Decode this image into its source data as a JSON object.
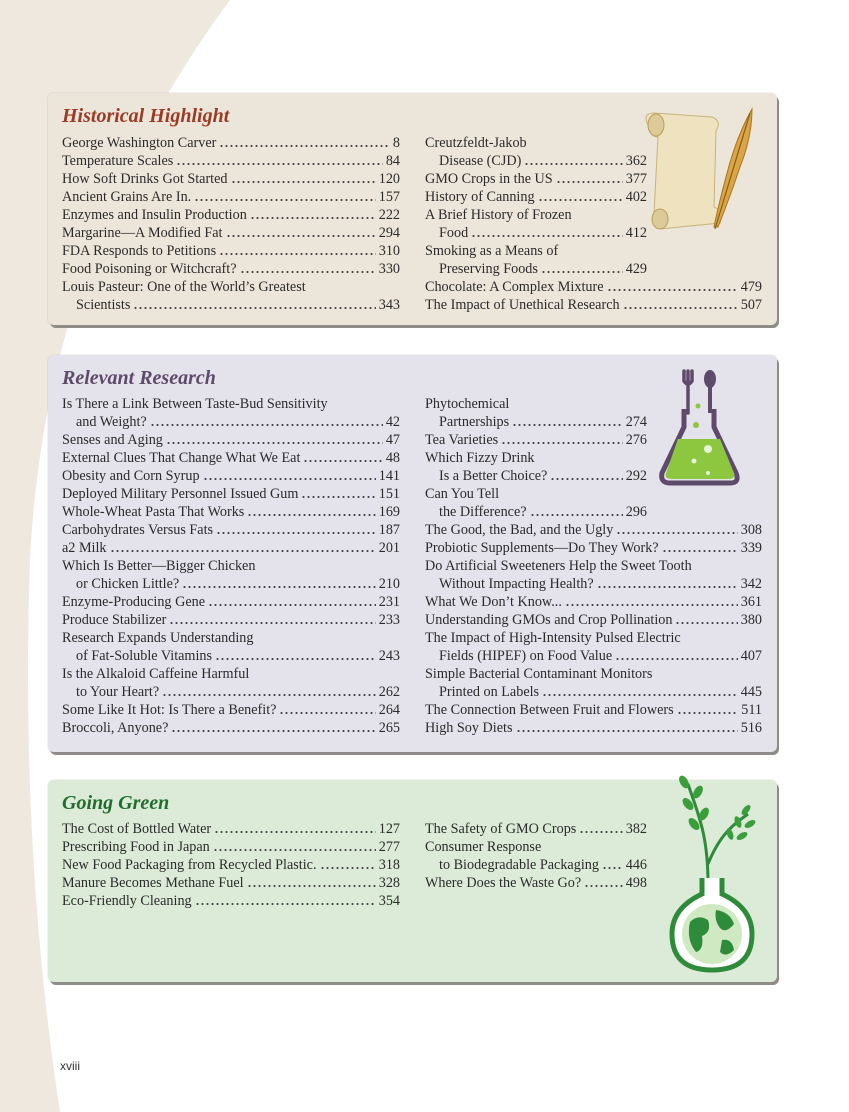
{
  "historical": {
    "title": "Historical Highlight",
    "color": "#9a3b26",
    "icon": "scroll-quill-icon",
    "left": [
      {
        "title": "George Washington Carver",
        "page": "8"
      },
      {
        "title": "Temperature Scales",
        "page": "84"
      },
      {
        "title": "How Soft Drinks Got Started",
        "page": "120"
      },
      {
        "title": "Ancient Grains Are In.",
        "page": "157"
      },
      {
        "title": "Enzymes and Insulin Production",
        "page": "222"
      },
      {
        "title": "Margarine—A Modified Fat",
        "page": "294"
      },
      {
        "title": "FDA Responds to Petitions",
        "page": "310"
      },
      {
        "title": "Food Poisoning or Witchcraft?",
        "page": "330"
      },
      {
        "title": "Louis Pasteur: One of the World’s Greatest",
        "cont": "Scientists",
        "page": "343"
      }
    ],
    "right": [
      {
        "title": "Creutzfeldt-Jakob",
        "cont": "Disease (CJD)",
        "page": "362",
        "narrow": true
      },
      {
        "title": "GMO Crops in the US",
        "page": "377",
        "narrow": true
      },
      {
        "title": "History of Canning",
        "page": "402",
        "narrow": true
      },
      {
        "title": "A Brief History of Frozen",
        "cont": "Food",
        "page": "412",
        "narrow": true
      },
      {
        "title": "Smoking as a Means of",
        "cont": "Preserving Foods",
        "page": "429",
        "narrow": true
      },
      {
        "title": "Chocolate: A Complex Mixture",
        "page": "479"
      },
      {
        "title": "The Impact of Unethical Research",
        "page": "507"
      }
    ]
  },
  "research": {
    "title": "Relevant Research",
    "color": "#5e4a6a",
    "icon": "flask-fork-spoon-icon",
    "left": [
      {
        "title": "Is There a Link Between Taste-Bud Sensitivity",
        "cont": "and Weight?",
        "page": "42"
      },
      {
        "title": "Senses and Aging",
        "page": "47"
      },
      {
        "title": "External Clues That Change What We Eat",
        "page": "48"
      },
      {
        "title": "Obesity and Corn Syrup",
        "page": "141"
      },
      {
        "title": "Deployed Military Personnel Issued Gum",
        "page": "151"
      },
      {
        "title": "Whole-Wheat Pasta That Works",
        "page": "169"
      },
      {
        "title": "Carbohydrates Versus Fats",
        "page": "187"
      },
      {
        "title": "a2 Milk",
        "page": "201"
      },
      {
        "title": "Which Is Better—Bigger Chicken",
        "cont": "or Chicken Little?",
        "page": "210"
      },
      {
        "title": "Enzyme-Producing Gene",
        "page": "231"
      },
      {
        "title": "Produce Stabilizer",
        "page": "233"
      },
      {
        "title": "Research Expands Understanding",
        "cont": "of Fat-Soluble Vitamins",
        "page": "243"
      },
      {
        "title": "Is the Alkaloid Caffeine Harmful",
        "cont": "to Your Heart?",
        "page": "262"
      },
      {
        "title": "Some Like It Hot: Is There a Benefit?",
        "page": "264"
      },
      {
        "title": "Broccoli, Anyone?",
        "page": "265"
      }
    ],
    "right": [
      {
        "title": "Phytochemical",
        "cont": "Partnerships",
        "page": "274",
        "narrow": true
      },
      {
        "title": "Tea Varieties",
        "page": "276",
        "narrow": true
      },
      {
        "title": "Which Fizzy Drink",
        "cont": "Is a Better Choice?",
        "page": "292",
        "narrow": true
      },
      {
        "title": "Can You Tell",
        "cont": "the Difference?",
        "page": "296",
        "narrow": true
      },
      {
        "title": "The Good, the Bad, and the Ugly",
        "page": "308"
      },
      {
        "title": "Probiotic Supplements—Do They Work?",
        "page": "339"
      },
      {
        "title": "Do Artificial Sweeteners Help the Sweet Tooth",
        "cont": "Without Impacting Health?",
        "page": "342"
      },
      {
        "title": "What We Don’t Know...",
        "page": "361"
      },
      {
        "title": "Understanding GMOs and Crop Pollination",
        "page": "380"
      },
      {
        "title": "The Impact of High-Intensity Pulsed Electric",
        "cont": "Fields (HIPEF) on Food Value",
        "page": "407"
      },
      {
        "title": "Simple Bacterial Contaminant Monitors",
        "cont": "Printed on Labels",
        "page": "445"
      },
      {
        "title": "The Connection Between Fruit and Flowers",
        "page": "511"
      },
      {
        "title": "High Soy Diets",
        "page": "516"
      }
    ]
  },
  "green": {
    "title": "Going Green",
    "color": "#1f6e2e",
    "icon": "plant-globe-icon",
    "left": [
      {
        "title": "The Cost of Bottled Water",
        "page": "127"
      },
      {
        "title": "Prescribing Food in Japan",
        "page": "277"
      },
      {
        "title": "New Food Packaging from Recycled Plastic.",
        "page": "318"
      },
      {
        "title": "Manure Becomes Methane Fuel",
        "page": "328"
      },
      {
        "title": "Eco-Friendly Cleaning",
        "page": "354"
      }
    ],
    "right": [
      {
        "title": "The Safety of GMO Crops",
        "page": "382",
        "narrow": true
      },
      {
        "title": "Consumer Response",
        "cont": "to Biodegradable Packaging",
        "page": "446",
        "narrow": true
      },
      {
        "title": "Where Does the Waste Go?",
        "page": "498",
        "narrow": true
      }
    ]
  },
  "page_number": "xviii"
}
